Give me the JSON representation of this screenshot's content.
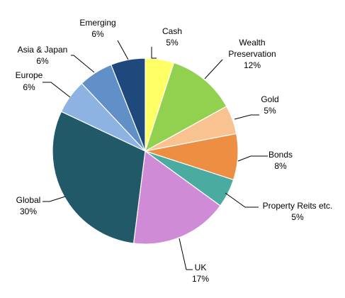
{
  "chart_data": {
    "type": "pie",
    "title": "",
    "slices": [
      {
        "name": "Cash",
        "value": 5,
        "value_label": "5%",
        "color": "#ffff66"
      },
      {
        "name": "Wealth Preservation",
        "value": 12,
        "value_label": "12%",
        "color": "#92d050"
      },
      {
        "name": "Gold",
        "value": 5,
        "value_label": "5%",
        "color": "#f8c291"
      },
      {
        "name": "Bonds",
        "value": 8,
        "value_label": "8%",
        "color": "#ee8e42"
      },
      {
        "name": "Property Reits etc.",
        "value": 5,
        "value_label": "5%",
        "color": "#4aaba0"
      },
      {
        "name": "UK",
        "value": 17,
        "value_label": "17%",
        "color": "#d08bd6"
      },
      {
        "name": "Global",
        "value": 30,
        "value_label": "30%",
        "color": "#215968"
      },
      {
        "name": "Europe",
        "value": 6,
        "value_label": "6%",
        "color": "#8db3e2"
      },
      {
        "name": "Asia & Japan",
        "value": 6,
        "value_label": "6%",
        "color": "#6190c8"
      },
      {
        "name": "Emerging",
        "value": 6,
        "value_label": "6%",
        "color": "#1f497d"
      }
    ]
  }
}
